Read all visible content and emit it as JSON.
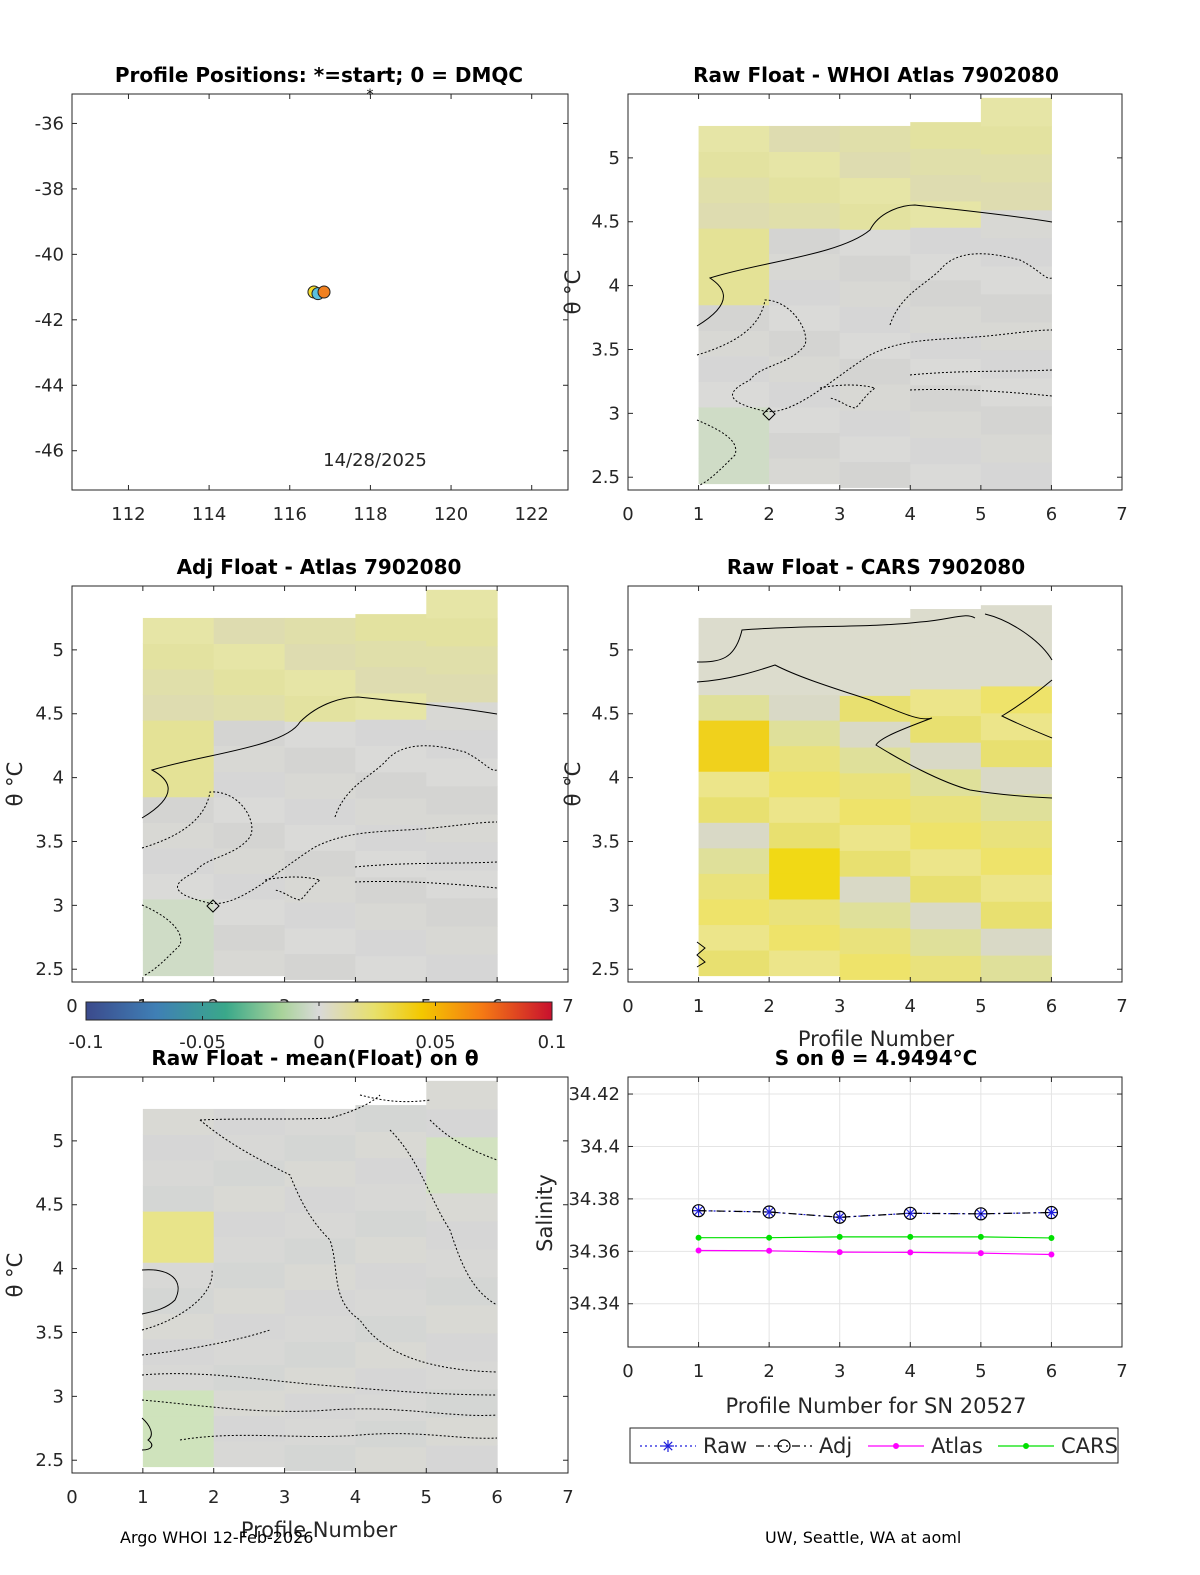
{
  "footer": {
    "left": "Argo WHOI 12-Feb-2026",
    "right": "UW, Seattle, WA at aoml"
  },
  "colors": {
    "raw": "#1f1fdc",
    "adj": "#000000",
    "atlas": "#ff00ff",
    "cars": "#00e000",
    "grey_cell": "#d6d6d6",
    "axis": "#262626"
  },
  "colorbar": {
    "ticks": [
      "-0.1",
      "-0.05",
      "0",
      "0.05",
      "0.1"
    ],
    "min": -0.1,
    "max": 0.1
  },
  "chart_data": [
    {
      "id": "positions",
      "type": "scatter",
      "title": "Profile Positions: *=start; 0 = DMQC",
      "xlabel": "",
      "ylabel": "",
      "xlim": [
        110.6,
        122.9
      ],
      "ylim": [
        -47.2,
        -35.1
      ],
      "xticks": [
        "112",
        "114",
        "116",
        "118",
        "120",
        "122"
      ],
      "yticks": [
        "-36",
        "-38",
        "-40",
        "-42",
        "-44",
        "-46"
      ],
      "points": [
        {
          "lon": 116.6,
          "lat": -41.15,
          "color": "#f5dc2a"
        },
        {
          "lon": 116.7,
          "lat": -41.2,
          "color": "#5bc0e0"
        },
        {
          "lon": 116.85,
          "lat": -41.15,
          "color": "#f08020"
        }
      ],
      "annotation": "14/28/2025"
    },
    {
      "id": "raw-whoi",
      "type": "heatmap",
      "title": "Raw Float - WHOI Atlas  7902080",
      "xlabel": "",
      "ylabel": "θ °C",
      "xlim": [
        0,
        7
      ],
      "ylim": [
        2.4,
        5.5
      ],
      "xticks": [
        "0",
        "1",
        "2",
        "3",
        "4",
        "5",
        "6",
        "7"
      ],
      "yticks": [
        "2.5",
        "3",
        "3.5",
        "4",
        "4.5",
        "5"
      ]
    },
    {
      "id": "adj-atlas",
      "type": "heatmap",
      "title": "Adj Float - Atlas  7902080",
      "xlabel": "",
      "ylabel": "θ °C",
      "xlim": [
        0,
        7
      ],
      "ylim": [
        2.4,
        5.5
      ],
      "xticks": [
        "0",
        "1",
        "2",
        "3",
        "4",
        "5",
        "6",
        "7"
      ],
      "yticks": [
        "2.5",
        "3",
        "3.5",
        "4",
        "4.5",
        "5"
      ]
    },
    {
      "id": "raw-cars",
      "type": "heatmap",
      "title": "Raw Float - CARS  7902080",
      "xlabel": "Profile Number",
      "ylabel": "θ °C",
      "xlim": [
        0,
        7
      ],
      "ylim": [
        2.4,
        5.5
      ],
      "xticks": [
        "0",
        "1",
        "2",
        "3",
        "4",
        "5",
        "6",
        "7"
      ],
      "yticks": [
        "2.5",
        "3",
        "3.5",
        "4",
        "4.5",
        "5"
      ]
    },
    {
      "id": "raw-mean",
      "type": "heatmap",
      "title": "Raw Float - mean(Float) on θ",
      "xlabel": "Profile Number",
      "ylabel": "θ °C",
      "xlim": [
        0,
        7
      ],
      "ylim": [
        2.4,
        5.5
      ],
      "xticks": [
        "0",
        "1",
        "2",
        "3",
        "4",
        "5",
        "6",
        "7"
      ],
      "yticks": [
        "2.5",
        "3",
        "3.5",
        "4",
        "4.5",
        "5"
      ]
    },
    {
      "id": "salinity",
      "type": "line",
      "title": "S on θ = 4.9494°C",
      "xlabel": "Profile Number for SN 20527",
      "ylabel": "Salinity",
      "xlim": [
        0,
        7
      ],
      "ylim": [
        34.3235,
        34.4265
      ],
      "xticks": [
        "0",
        "1",
        "2",
        "3",
        "4",
        "5",
        "6",
        "7"
      ],
      "yticks": [
        "34.34",
        "34.36",
        "34.38",
        "34.4",
        "34.42"
      ],
      "x": [
        1,
        2,
        3,
        4,
        5,
        6
      ],
      "series": [
        {
          "name": "Raw",
          "values": [
            34.3755,
            34.375,
            34.373,
            34.3745,
            34.3743,
            34.3748
          ]
        },
        {
          "name": "Adj",
          "values": [
            34.3755,
            34.375,
            34.373,
            34.3745,
            34.3743,
            34.3748
          ]
        },
        {
          "name": "Atlas",
          "values": [
            34.3603,
            34.3602,
            34.3597,
            34.3596,
            34.3593,
            34.3588
          ]
        },
        {
          "name": "CARS",
          "values": [
            34.3652,
            34.3652,
            34.3655,
            34.3655,
            34.3655,
            34.3651
          ]
        }
      ]
    }
  ]
}
